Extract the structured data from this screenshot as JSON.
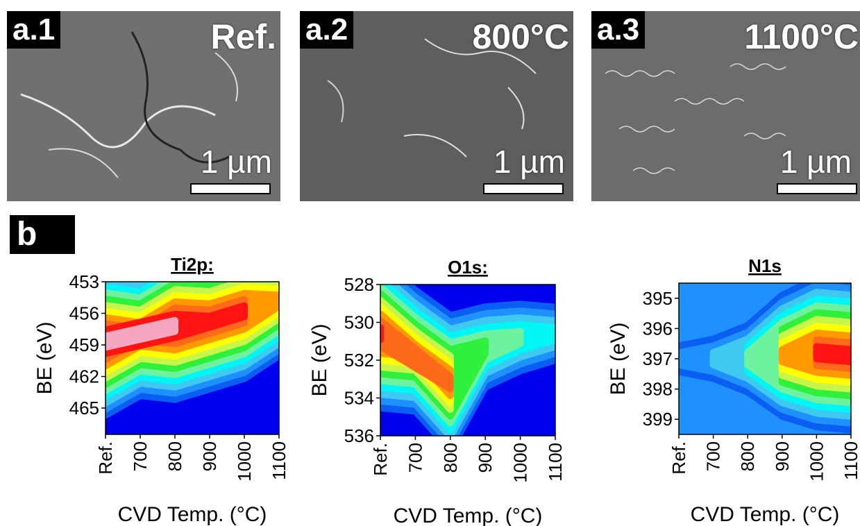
{
  "sem_panels": [
    {
      "tag": "a.1",
      "condition": "Ref.",
      "scale": "1 µm"
    },
    {
      "tag": "a.2",
      "condition": "800°C",
      "scale": "1 µm"
    },
    {
      "tag": "a.3",
      "condition": "1100°C",
      "scale": "1 µm"
    }
  ],
  "panel_b": {
    "tag": "b"
  },
  "colors": {
    "colormap": [
      "#0000ee",
      "#0a5ff2",
      "#1e90ff",
      "#3fc8f0",
      "#00f5f5",
      "#6ff2a0",
      "#2ff03a",
      "#c8f54a",
      "#ffff00",
      "#ff9900",
      "#ff6a1a",
      "#ff1414",
      "#f5a6c0"
    ]
  },
  "chart_data": [
    {
      "type": "heatmap",
      "title": "Ti2p:",
      "xlabel": "CVD Temp. (°C)",
      "ylabel": "BE (eV)",
      "categories": [
        "Ref.",
        "700",
        "800",
        "900",
        "1000",
        "1100"
      ],
      "yticks": [
        453,
        456,
        459,
        462,
        465
      ],
      "ylim": [
        453,
        467.5
      ],
      "y_direction": "inverted",
      "peak_band": [
        {
          "x": "Ref.",
          "y": 458.7,
          "level": 12
        },
        {
          "x": "700",
          "y": 458.0,
          "level": 10
        },
        {
          "x": "800",
          "y": 457.2,
          "level": 12
        },
        {
          "x": "900",
          "y": 456.8,
          "level": 11
        },
        {
          "x": "1000",
          "y": 455.8,
          "level": 11
        },
        {
          "x": "1100",
          "y": 454.8,
          "level": 9
        }
      ]
    },
    {
      "type": "heatmap",
      "title": "O1s:",
      "xlabel": "CVD Temp. (°C)",
      "ylabel": "BE (eV)",
      "categories": [
        "Ref.",
        "700",
        "800",
        "900",
        "1000",
        "1100"
      ],
      "yticks": [
        528,
        530,
        532,
        534,
        536
      ],
      "ylim": [
        528,
        536
      ],
      "y_direction": "inverted",
      "peak_band": [
        {
          "x": "Ref.",
          "y": 530.6,
          "level": 11
        },
        {
          "x": "700",
          "y": 531.5,
          "level": 9
        },
        {
          "x": "800",
          "y": 533.2,
          "level": 10
        },
        {
          "x": "900",
          "y": 531.3,
          "level": 6
        },
        {
          "x": "1000",
          "y": 530.8,
          "level": 5
        },
        {
          "x": "1100",
          "y": 530.6,
          "level": 4
        }
      ]
    },
    {
      "type": "heatmap",
      "title": "N1s",
      "xlabel": "CVD Temp. (°C)",
      "ylabel": "BE (eV)",
      "categories": [
        "Ref.",
        "700",
        "800",
        "900",
        "1000",
        "1100"
      ],
      "yticks": [
        395,
        396,
        397,
        398,
        399
      ],
      "ylim": [
        394.5,
        399.5
      ],
      "y_direction": "inverted",
      "peak_band": [
        {
          "x": "Ref.",
          "y": 397.0,
          "level": 2
        },
        {
          "x": "700",
          "y": 397.0,
          "level": 3
        },
        {
          "x": "800",
          "y": 397.0,
          "level": 5
        },
        {
          "x": "900",
          "y": 396.9,
          "level": 9
        },
        {
          "x": "1000",
          "y": 396.8,
          "level": 11
        },
        {
          "x": "1100",
          "y": 396.9,
          "level": 11
        }
      ]
    }
  ]
}
